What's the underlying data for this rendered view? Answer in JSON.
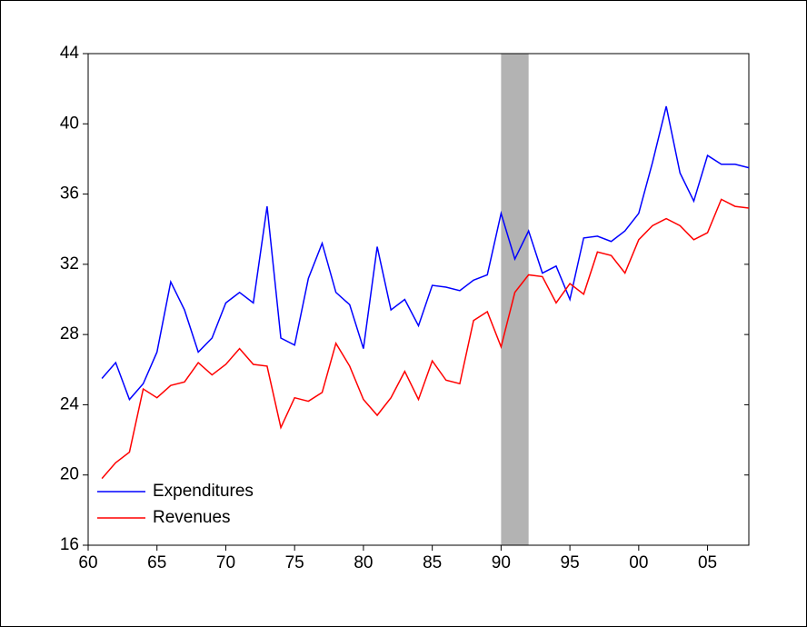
{
  "chart_data": {
    "type": "line",
    "x": [
      1961,
      1962,
      1963,
      1964,
      1965,
      1966,
      1967,
      1968,
      1969,
      1970,
      1971,
      1972,
      1973,
      1974,
      1975,
      1976,
      1977,
      1978,
      1979,
      1980,
      1981,
      1982,
      1983,
      1984,
      1985,
      1986,
      1987,
      1988,
      1989,
      1990,
      1991,
      1992,
      1993,
      1994,
      1995,
      1996,
      1997,
      1998,
      1999,
      2000,
      2001,
      2002,
      2003,
      2004,
      2005,
      2006,
      2007,
      2008
    ],
    "series": [
      {
        "name": "Expenditures",
        "color": "#0000ff",
        "values": [
          25.5,
          26.4,
          24.3,
          25.2,
          27.0,
          31.0,
          29.4,
          27.0,
          27.8,
          29.8,
          30.4,
          29.8,
          35.3,
          27.8,
          27.4,
          31.2,
          33.2,
          30.4,
          29.7,
          27.2,
          33.0,
          29.4,
          30.0,
          28.5,
          30.8,
          30.7,
          30.5,
          31.1,
          31.4,
          34.9,
          32.3,
          33.9,
          31.5,
          31.9,
          30.0,
          33.5,
          33.6,
          33.3,
          33.9,
          34.9,
          37.8,
          41.0,
          37.2,
          35.6,
          38.2,
          37.7,
          37.7,
          37.5
        ]
      },
      {
        "name": "Revenues",
        "color": "#ff0000",
        "values": [
          19.8,
          20.7,
          21.3,
          24.9,
          24.4,
          25.1,
          25.3,
          26.4,
          25.7,
          26.3,
          27.2,
          26.3,
          26.2,
          22.7,
          24.4,
          24.2,
          24.7,
          27.5,
          26.2,
          24.3,
          23.4,
          24.4,
          25.9,
          24.3,
          26.5,
          25.4,
          25.2,
          28.8,
          29.3,
          27.3,
          30.4,
          31.4,
          31.3,
          29.8,
          30.9,
          30.3,
          32.7,
          32.5,
          31.5,
          33.4,
          34.2,
          34.6,
          34.2,
          33.4,
          33.8,
          35.7,
          35.3,
          35.2
        ]
      }
    ],
    "shaded_regions": [
      [
        1990,
        1992
      ]
    ],
    "shade_color": "#b3b3b3",
    "xlim": [
      1960,
      2008
    ],
    "xticks": [
      {
        "value": 1960,
        "label": "60"
      },
      {
        "value": 1965,
        "label": "65"
      },
      {
        "value": 1970,
        "label": "70"
      },
      {
        "value": 1975,
        "label": "75"
      },
      {
        "value": 1980,
        "label": "80"
      },
      {
        "value": 1985,
        "label": "85"
      },
      {
        "value": 1990,
        "label": "90"
      },
      {
        "value": 1995,
        "label": "95"
      },
      {
        "value": 2000,
        "label": "00"
      },
      {
        "value": 2005,
        "label": "05"
      }
    ],
    "ylim": [
      16,
      44
    ],
    "yticks": [
      16,
      20,
      24,
      28,
      32,
      36,
      40,
      44
    ],
    "legend": "lower-left",
    "grid": false
  }
}
